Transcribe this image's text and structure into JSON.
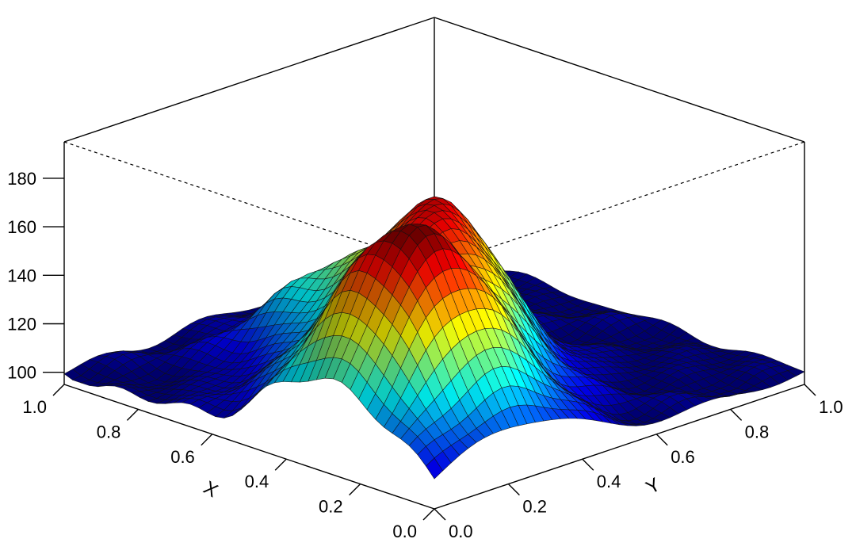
{
  "chart_data": {
    "type": "surface3d",
    "title": "",
    "xlabel": "X",
    "ylabel": "Y",
    "zlabel": "",
    "xlim": [
      0.0,
      1.0
    ],
    "ylim": [
      0.0,
      1.0
    ],
    "zlim": [
      95,
      195
    ],
    "x_ticks": [
      "0.0",
      "0.2",
      "0.4",
      "0.6",
      "0.8",
      "1.0"
    ],
    "y_ticks": [
      "0.0",
      "0.2",
      "0.4",
      "0.6",
      "0.8",
      "1.0"
    ],
    "z_ticks": [
      "100",
      "120",
      "140",
      "160",
      "180"
    ],
    "z_tick_values": [
      100,
      120,
      140,
      160,
      180
    ],
    "colormap": [
      "#00007f",
      "#0000ff",
      "#007fff",
      "#00ffff",
      "#7fff7f",
      "#ffff00",
      "#ff7f00",
      "#ff0000",
      "#7f0000"
    ],
    "grid": false,
    "surface": {
      "baseline": 100,
      "peaks": [
        {
          "x": 0.28,
          "y": 0.22,
          "height": 88
        },
        {
          "x": 0.45,
          "y": 0.48,
          "height": 58
        },
        {
          "x": 0.7,
          "y": 0.4,
          "height": 30
        }
      ],
      "crater": {
        "x": 0.33,
        "y": 0.3,
        "depth": -16
      },
      "resolution": 44
    }
  }
}
